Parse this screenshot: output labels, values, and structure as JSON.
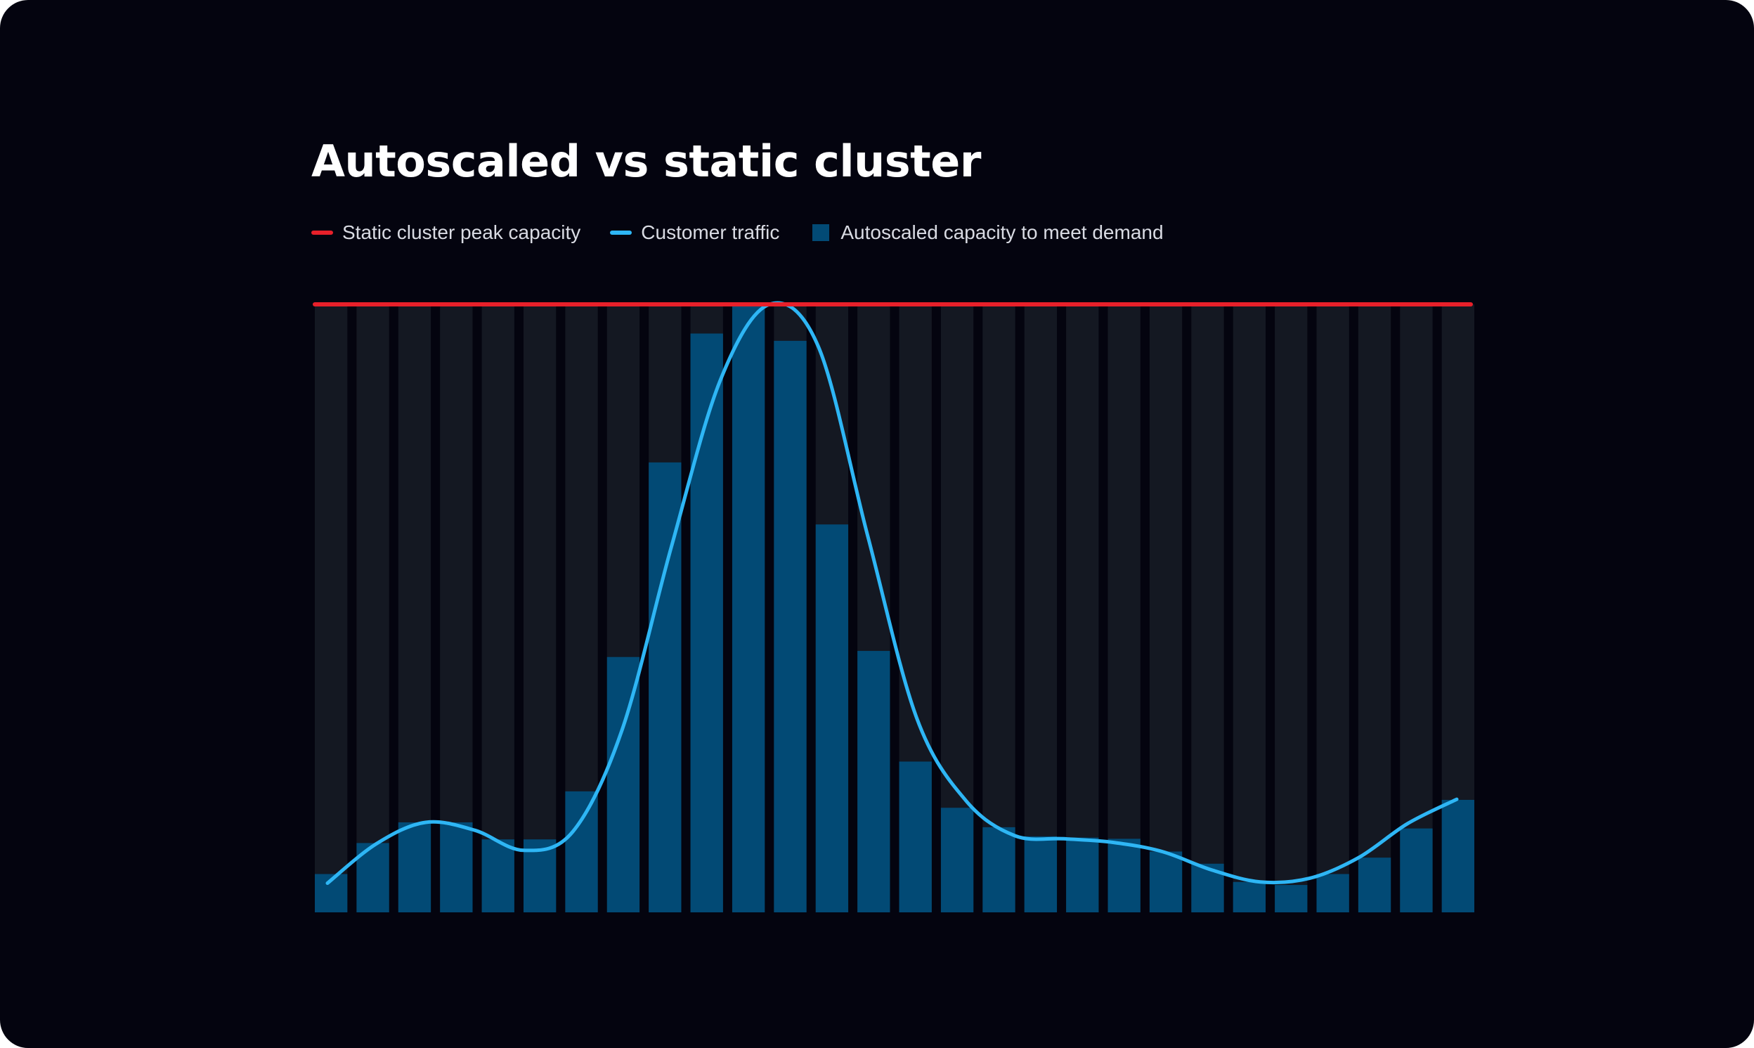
{
  "title": "Autoscaled vs static cluster",
  "colors": {
    "background": "#04040f",
    "static": "#e8202a",
    "traffic": "#2eb6f5",
    "autoscaled": "#024a75",
    "slot": "#141822",
    "title": "#ffffff",
    "legend_text": "#d9dbe3"
  },
  "legend": {
    "static_label": "Static cluster peak capacity",
    "traffic_label": "Customer traffic",
    "autoscaled_label": "Autoscaled capacity to meet demand"
  },
  "chart_data": {
    "type": "bar",
    "title": "Autoscaled vs static cluster",
    "xlabel": "",
    "ylabel": "",
    "ylim": [
      0,
      100
    ],
    "grid": false,
    "legend_position": "top-left",
    "static_capacity": 100,
    "series": [
      {
        "name": "Autoscaled capacity to meet demand",
        "type": "bar",
        "values": [
          6.3,
          11.4,
          14.8,
          14.8,
          12.0,
          12.0,
          19.9,
          42.0,
          74.0,
          95.2,
          100,
          94.0,
          63.8,
          43.0,
          24.8,
          17.2,
          14.0,
          12.5,
          12.3,
          12.1,
          10.0,
          8.0,
          5.0,
          4.5,
          6.3,
          9.0,
          13.8,
          18.5
        ]
      },
      {
        "name": "Customer traffic",
        "type": "line",
        "values": [
          4.8,
          11.3,
          14.8,
          13.5,
          10.2,
          13.3,
          30.0,
          60.0,
          87.5,
          100,
          93.0,
          62.0,
          32.0,
          18.4,
          12.6,
          12.1,
          11.5,
          10.0,
          7.0,
          5.0,
          5.6,
          9.0,
          14.6,
          18.6
        ]
      }
    ]
  }
}
